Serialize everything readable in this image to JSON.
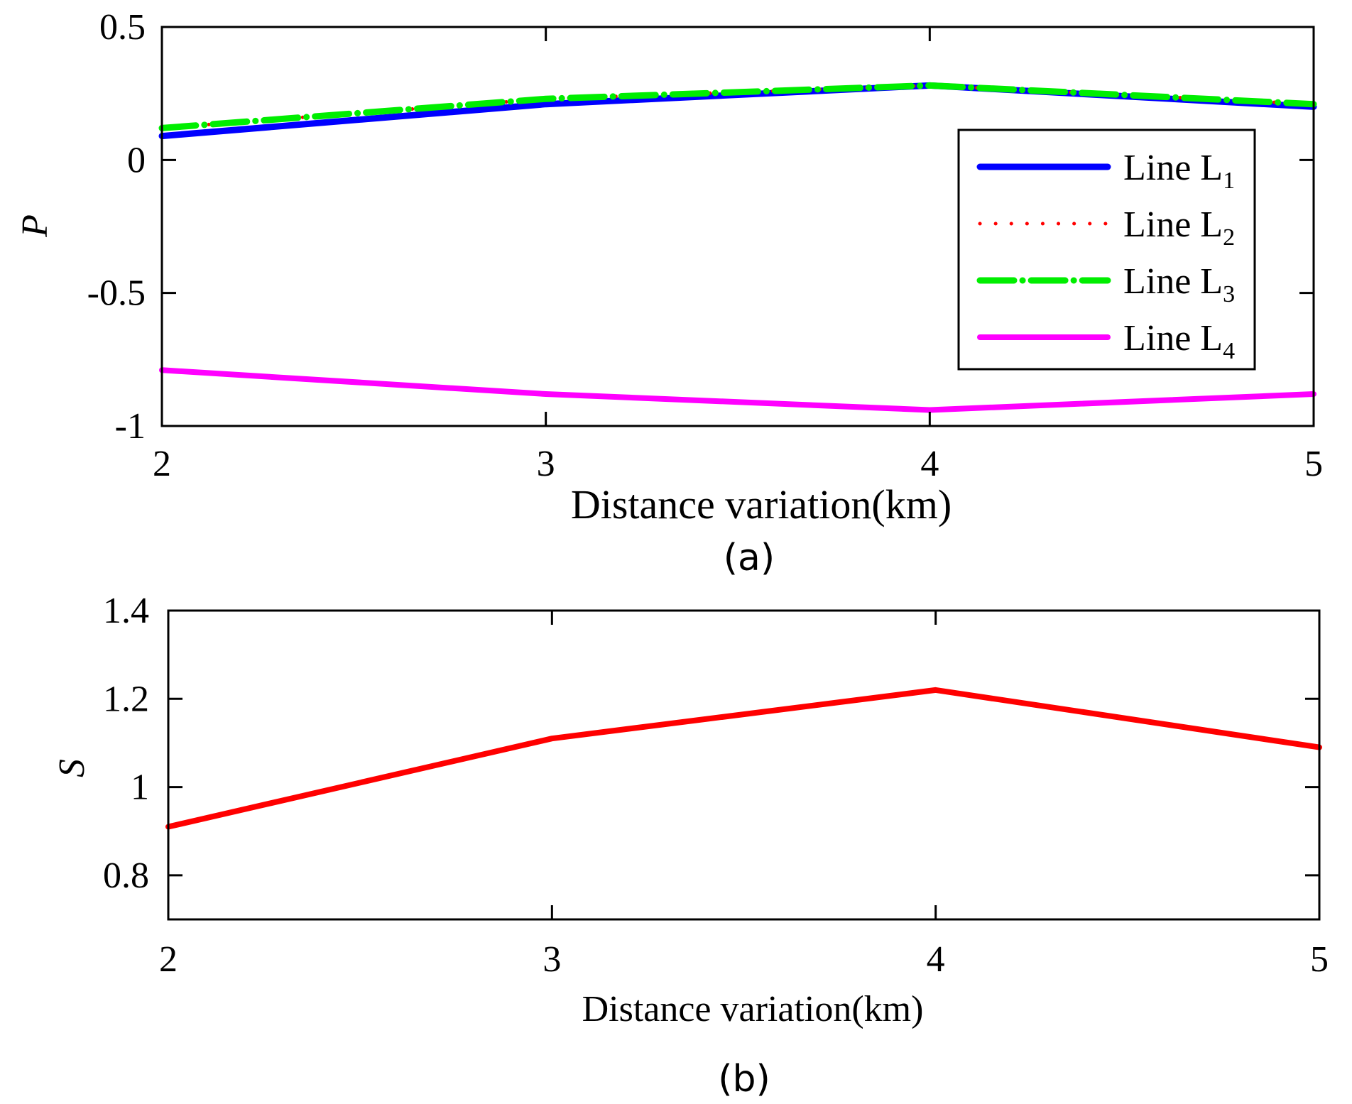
{
  "chart_data": [
    {
      "type": "line",
      "panel_caption": "(a)",
      "ylabel": "P",
      "xlabel": "Distance variation(km)",
      "x": [
        2,
        3,
        4,
        5
      ],
      "xlim": [
        2,
        5
      ],
      "ylim": [
        -1,
        0.5
      ],
      "xticks": [
        "2",
        "3",
        "4",
        "5"
      ],
      "yticks": [
        {
          "value": 0.5,
          "label": "0.5"
        },
        {
          "value": 0,
          "label": "0"
        },
        {
          "value": -0.5,
          "label": "-0.5"
        },
        {
          "value": -1,
          "label": "-1"
        }
      ],
      "legend_position": "right",
      "series": [
        {
          "name": "Line L",
          "sub": "1",
          "color": "#0000ff",
          "style": "solid",
          "values": [
            0.09,
            0.21,
            0.28,
            0.2
          ]
        },
        {
          "name": "Line L",
          "sub": "2",
          "color": "#ff0000",
          "style": "dotted",
          "values": [
            0.12,
            0.23,
            0.28,
            0.21
          ]
        },
        {
          "name": "Line L",
          "sub": "3",
          "color": "#00ee00",
          "style": "dashdot",
          "values": [
            0.12,
            0.23,
            0.28,
            0.21
          ]
        },
        {
          "name": "Line L",
          "sub": "4",
          "color": "#ff00ff",
          "style": "solid",
          "values": [
            -0.79,
            -0.88,
            -0.94,
            -0.88
          ]
        }
      ]
    },
    {
      "type": "line",
      "panel_caption": "(b)",
      "ylabel": "S",
      "xlabel": "Distance variation(km)",
      "x": [
        2,
        3,
        4,
        5
      ],
      "xlim": [
        2,
        5
      ],
      "ylim": [
        0.7,
        1.4
      ],
      "xticks": [
        "2",
        "3",
        "4",
        "5"
      ],
      "yticks": [
        {
          "value": 1.4,
          "label": "1.4"
        },
        {
          "value": 1.2,
          "label": "1.2"
        },
        {
          "value": 1.0,
          "label": "1"
        },
        {
          "value": 0.8,
          "label": "0.8"
        }
      ],
      "series": [
        {
          "name": "S",
          "color": "#ff0000",
          "style": "solid",
          "values": [
            0.91,
            1.11,
            1.22,
            1.09
          ]
        }
      ]
    }
  ]
}
